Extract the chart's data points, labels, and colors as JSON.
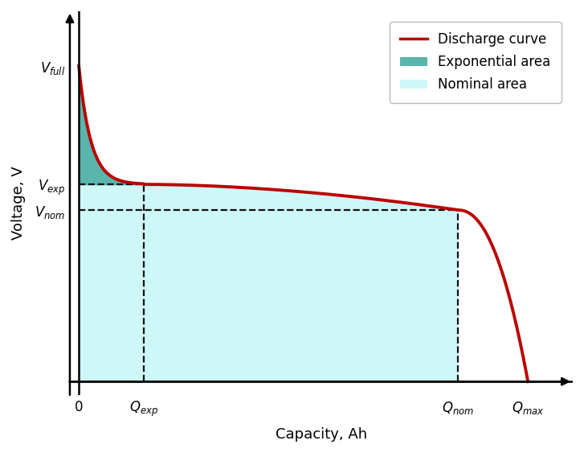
{
  "title": "",
  "xlabel": "Capacity, Ah",
  "ylabel": "Voltage, V",
  "discharge_color": "#bb0000",
  "exponential_fill_color": "#5ab5ad",
  "nominal_fill_color": "#cef7f7",
  "dashed_line_color": "#111111",
  "background_color": "#ffffff",
  "V_full": 0.92,
  "V_exp": 0.575,
  "V_nom": 0.5,
  "Q_exp": 0.13,
  "Q_nom": 0.76,
  "Q_max": 0.9,
  "legend_items": [
    "Discharge curve",
    "Exponential area",
    "Nominal area"
  ],
  "xlabel_fontsize": 13,
  "ylabel_fontsize": 13,
  "tick_label_fontsize": 12,
  "legend_fontsize": 12
}
